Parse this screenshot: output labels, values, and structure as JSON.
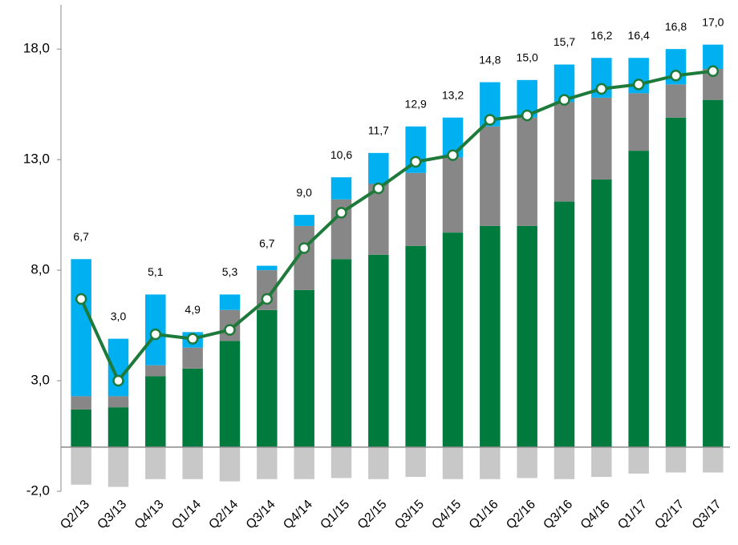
{
  "chart_data": {
    "type": "bar",
    "categories": [
      "Q2/13",
      "Q3/13",
      "Q4/13",
      "Q1/14",
      "Q2/14",
      "Q3/14",
      "Q4/14",
      "Q1/15",
      "Q2/15",
      "Q3/15",
      "Q4/15",
      "Q1/16",
      "Q2/16",
      "Q3/16",
      "Q4/16",
      "Q1/17",
      "Q2/17",
      "Q3/17"
    ],
    "series": [
      {
        "color": "#007a3d",
        "values": [
          1.7,
          1.8,
          3.2,
          3.55,
          4.8,
          6.2,
          7.1,
          8.5,
          8.7,
          9.1,
          9.7,
          10.0,
          10.0,
          11.1,
          12.1,
          13.4,
          14.9,
          15.7
        ]
      },
      {
        "color": "#878787",
        "values": [
          0.6,
          0.5,
          0.5,
          0.95,
          1.4,
          1.8,
          2.9,
          2.7,
          3.2,
          3.3,
          3.4,
          4.5,
          4.9,
          4.5,
          3.7,
          2.6,
          1.5,
          1.4
        ]
      },
      {
        "color": "#00b0f0",
        "values": [
          6.2,
          2.6,
          3.2,
          0.7,
          0.7,
          0.2,
          0.5,
          1.0,
          1.4,
          2.1,
          1.8,
          2.0,
          1.7,
          1.7,
          1.8,
          1.6,
          1.6,
          1.1
        ]
      },
      {
        "color": "#c8c8c8",
        "values": [
          -1.7,
          -1.8,
          -1.45,
          -1.45,
          -1.55,
          -1.45,
          -1.45,
          -1.4,
          -1.45,
          -1.35,
          -1.45,
          -1.45,
          -1.4,
          -1.45,
          -1.35,
          -1.2,
          -1.15,
          -1.15
        ]
      },
      {
        "type": "line",
        "color": "#1e7a3a",
        "values": [
          6.7,
          3.0,
          5.1,
          4.9,
          5.3,
          6.7,
          9.0,
          10.6,
          11.7,
          12.9,
          13.2,
          14.8,
          15.0,
          15.7,
          16.2,
          16.4,
          16.8,
          17.0
        ],
        "value_labels": [
          "6,7",
          "3,0",
          "5,1",
          "4,9",
          "5,3",
          "6,7",
          "9,0",
          "10,6",
          "11,7",
          "12,9",
          "13,2",
          "14,8",
          "15,0",
          "15,7",
          "16,2",
          "16,4",
          "16,8",
          "17,0"
        ]
      }
    ],
    "ylim": [
      -2,
      20
    ],
    "yticks": [
      {
        "value": -2,
        "label": "-2,0"
      },
      {
        "value": 3,
        "label": "3,0"
      },
      {
        "value": 8,
        "label": "8,0"
      },
      {
        "value": 13,
        "label": "13,0"
      },
      {
        "value": 18,
        "label": "18,0"
      }
    ]
  }
}
